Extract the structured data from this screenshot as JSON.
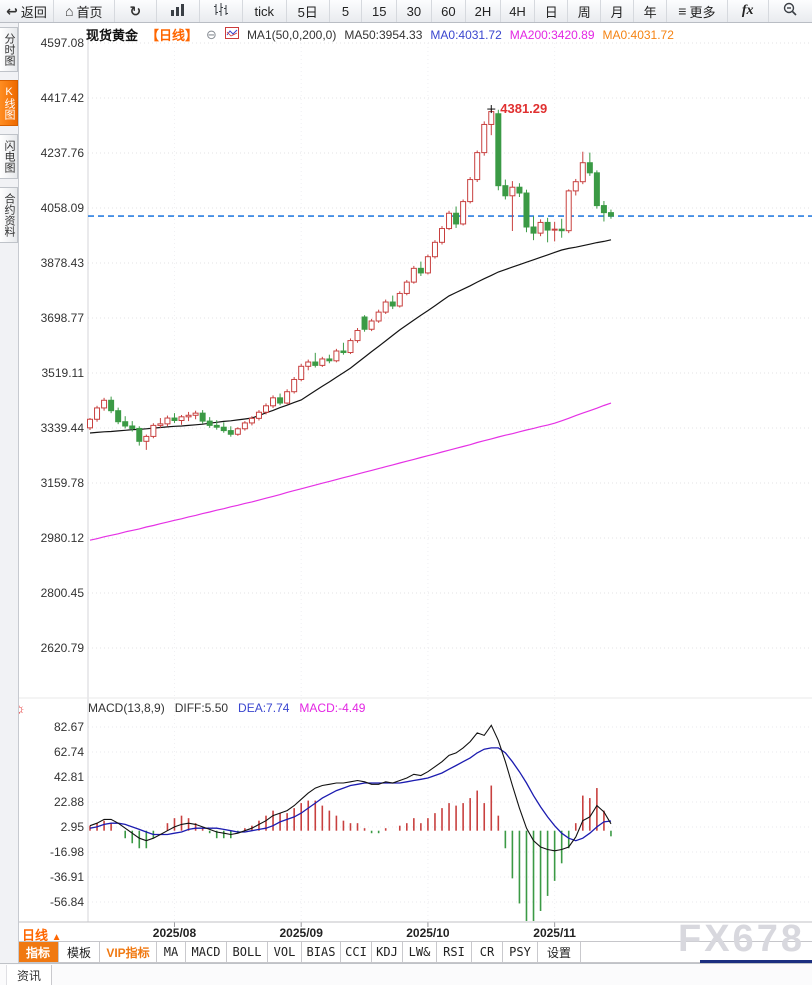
{
  "icons": {
    "back": "↩",
    "home": "⌂",
    "refresh": "↻",
    "hamburger": "≡",
    "collapse": "⊖",
    "indicator_settings": "☼",
    "period_arrow": "▲"
  },
  "toolbar": {
    "back_label": "返回",
    "home_label": "首页",
    "tick_label": "tick",
    "five_day_label": "5日",
    "periods": [
      "5",
      "15",
      "30",
      "60",
      "2H",
      "4H",
      "日",
      "周",
      "月",
      "年"
    ],
    "more_label": "更多",
    "fx_label": "fx"
  },
  "sidebar": {
    "tabs": [
      {
        "label": "分时图",
        "active": false
      },
      {
        "label": "K线图",
        "active": true
      },
      {
        "label": "闪电图",
        "active": false
      },
      {
        "label": "合约资料",
        "active": false
      }
    ]
  },
  "header": {
    "symbol": "现货黄金",
    "period": "【日线】",
    "ma_title": "MA1(50,0,200,0)",
    "ma50": "MA50:3954.33",
    "ma0_blue": "MA0:4031.72",
    "ma200": "MA200:3420.89",
    "ma0_orange": "MA0:4031.72"
  },
  "macd_header": {
    "title": "MACD(13,8,9)",
    "diff": "DIFF:5.50",
    "dea": "DEA:7.74",
    "macd": "MACD:-4.49"
  },
  "bottom": {
    "period_label": "日线",
    "indicator_tabs": [
      {
        "label": "指标"
      },
      {
        "label": "模板"
      },
      {
        "label": "VIP指标"
      },
      {
        "label": "MA"
      },
      {
        "label": "MACD"
      },
      {
        "label": "BOLL"
      },
      {
        "label": "VOL"
      },
      {
        "label": "BIAS"
      },
      {
        "label": "CCI"
      },
      {
        "label": "KDJ"
      },
      {
        "label": "LW&"
      },
      {
        "label": "RSI"
      },
      {
        "label": "CR"
      },
      {
        "label": "PSY"
      },
      {
        "label": "设置"
      }
    ]
  },
  "statusbar": {
    "news_label": "资讯"
  },
  "watermark": "FX678",
  "chart_data": {
    "type": "candlestick",
    "title": "现货黄金 日线",
    "indicator": "MACD(13,8,9)",
    "price_axis_labels": [
      4597.08,
      4417.42,
      4237.76,
      4058.09,
      3878.43,
      3698.77,
      3519.11,
      3339.44,
      3159.78,
      2980.12,
      2800.45,
      2620.79
    ],
    "macd_axis_labels": [
      82.67,
      62.74,
      42.81,
      22.88,
      2.95,
      -16.98,
      -36.91,
      -56.84
    ],
    "x_ticks": [
      {
        "label": "2025/08",
        "index": 12
      },
      {
        "label": "2025/09",
        "index": 30
      },
      {
        "label": "2025/10",
        "index": 48
      },
      {
        "label": "2025/11",
        "index": 66
      }
    ],
    "current_price": 4031.72,
    "peak_annotation": {
      "value": 4381.29,
      "index": 57
    },
    "candles": [
      [
        3340,
        3372,
        3333,
        3368
      ],
      [
        3368,
        3412,
        3360,
        3405
      ],
      [
        3405,
        3438,
        3396,
        3430
      ],
      [
        3430,
        3442,
        3388,
        3396
      ],
      [
        3396,
        3406,
        3352,
        3360
      ],
      [
        3360,
        3378,
        3338,
        3346
      ],
      [
        3346,
        3362,
        3328,
        3338
      ],
      [
        3338,
        3345,
        3282,
        3296
      ],
      [
        3296,
        3318,
        3268,
        3312
      ],
      [
        3312,
        3355,
        3306,
        3348
      ],
      [
        3348,
        3372,
        3340,
        3353
      ],
      [
        3353,
        3380,
        3345,
        3372
      ],
      [
        3372,
        3388,
        3356,
        3364
      ],
      [
        3364,
        3382,
        3350,
        3376
      ],
      [
        3376,
        3392,
        3362,
        3381
      ],
      [
        3381,
        3396,
        3368,
        3388
      ],
      [
        3388,
        3398,
        3354,
        3362
      ],
      [
        3362,
        3375,
        3340,
        3348
      ],
      [
        3348,
        3365,
        3334,
        3342
      ],
      [
        3342,
        3358,
        3324,
        3331
      ],
      [
        3331,
        3345,
        3311,
        3319
      ],
      [
        3319,
        3342,
        3314,
        3337
      ],
      [
        3337,
        3362,
        3331,
        3356
      ],
      [
        3356,
        3378,
        3348,
        3371
      ],
      [
        3371,
        3398,
        3364,
        3391
      ],
      [
        3391,
        3420,
        3384,
        3412
      ],
      [
        3412,
        3446,
        3405,
        3438
      ],
      [
        3438,
        3452,
        3414,
        3421
      ],
      [
        3421,
        3466,
        3417,
        3458
      ],
      [
        3458,
        3506,
        3452,
        3498
      ],
      [
        3498,
        3549,
        3492,
        3541
      ],
      [
        3541,
        3563,
        3528,
        3555
      ],
      [
        3555,
        3585,
        3537,
        3544
      ],
      [
        3544,
        3572,
        3539,
        3565
      ],
      [
        3565,
        3579,
        3551,
        3559
      ],
      [
        3559,
        3598,
        3554,
        3591
      ],
      [
        3591,
        3618,
        3579,
        3586
      ],
      [
        3586,
        3632,
        3581,
        3625
      ],
      [
        3625,
        3666,
        3618,
        3658
      ],
      [
        3702,
        3708,
        3654,
        3662
      ],
      [
        3662,
        3696,
        3656,
        3689
      ],
      [
        3689,
        3726,
        3683,
        3718
      ],
      [
        3718,
        3759,
        3712,
        3751
      ],
      [
        3751,
        3772,
        3728,
        3738
      ],
      [
        3738,
        3786,
        3733,
        3779
      ],
      [
        3779,
        3823,
        3773,
        3816
      ],
      [
        3816,
        3869,
        3811,
        3861
      ],
      [
        3861,
        3883,
        3836,
        3846
      ],
      [
        3846,
        3906,
        3841,
        3899
      ],
      [
        3899,
        3953,
        3893,
        3946
      ],
      [
        3946,
        3999,
        3939,
        3991
      ],
      [
        3991,
        4049,
        3986,
        4041
      ],
      [
        4041,
        4063,
        3993,
        4006
      ],
      [
        4006,
        4086,
        4001,
        4079
      ],
      [
        4079,
        4159,
        4073,
        4151
      ],
      [
        4151,
        4246,
        4143,
        4239
      ],
      [
        4239,
        4341,
        4229,
        4331
      ],
      [
        4331,
        4381.29,
        4296,
        4373
      ],
      [
        4366,
        4379,
        4116,
        4131
      ],
      [
        4131,
        4151,
        4086,
        4098
      ],
      [
        4098,
        4146,
        3983,
        4126
      ],
      [
        4126,
        4139,
        4094,
        4107
      ],
      [
        4107,
        4118,
        3979,
        3996
      ],
      [
        3996,
        4031,
        3953,
        3976
      ],
      [
        3976,
        4021,
        3966,
        4011
      ],
      [
        4011,
        4026,
        3946,
        3986
      ],
      [
        3986,
        4013,
        3949,
        3989
      ],
      [
        3989,
        4023,
        3961,
        3984
      ],
      [
        3984,
        4119,
        3976,
        4114
      ],
      [
        4114,
        4153,
        4099,
        4144
      ],
      [
        4144,
        4242,
        4136,
        4206
      ],
      [
        4206,
        4239,
        4163,
        4173
      ],
      [
        4173,
        4181,
        4056,
        4066
      ],
      [
        4066,
        4081,
        4014,
        4043
      ],
      [
        4043,
        4053,
        4023,
        4031.72
      ]
    ],
    "ma50": [
      3323,
      3325,
      3327,
      3328,
      3330,
      3332,
      3334,
      3335,
      3337,
      3339,
      3341,
      3343,
      3345,
      3346,
      3348,
      3350,
      3352,
      3355,
      3358,
      3361,
      3363,
      3366,
      3369,
      3372,
      3380,
      3389,
      3397,
      3406,
      3414,
      3423,
      3431,
      3446,
      3461,
      3476,
      3490,
      3505,
      3520,
      3535,
      3553,
      3571,
      3589,
      3606,
      3624,
      3642,
      3660,
      3676,
      3692,
      3708,
      3723,
      3739,
      3755,
      3771,
      3782,
      3793,
      3804,
      3816,
      3827,
      3838,
      3849,
      3857,
      3865,
      3873,
      3881,
      3889,
      3897,
      3905,
      3913,
      3921,
      3926,
      3930,
      3935,
      3940,
      3945,
      3949,
      3954.33
    ],
    "ma200": [
      2973,
      2978,
      2984,
      2989,
      2994,
      3000,
      3005,
      3010,
      3016,
      3021,
      3027,
      3032,
      3038,
      3043,
      3049,
      3054,
      3060,
      3065,
      3071,
      3076,
      3082,
      3087,
      3093,
      3098,
      3104,
      3110,
      3116,
      3122,
      3129,
      3135,
      3141,
      3147,
      3153,
      3159,
      3165,
      3171,
      3177,
      3183,
      3189,
      3195,
      3201,
      3207,
      3213,
      3219,
      3225,
      3231,
      3237,
      3243,
      3249,
      3255,
      3261,
      3267,
      3273,
      3279,
      3285,
      3292,
      3298,
      3304,
      3310,
      3316,
      3321,
      3327,
      3333,
      3338,
      3344,
      3349,
      3355,
      3363,
      3371,
      3380,
      3388,
      3396,
      3404,
      3413,
      3420.89
    ],
    "macd": {
      "diff": [
        4,
        6,
        9,
        9,
        6,
        2,
        -2,
        -6,
        -8,
        -6,
        -3,
        0,
        3,
        5,
        6,
        5,
        3,
        1,
        -1,
        -2,
        -3,
        -2,
        0,
        2,
        5,
        8,
        12,
        14,
        16,
        20,
        25,
        30,
        34,
        36,
        37,
        38,
        38,
        39,
        40,
        39,
        37,
        37,
        39,
        38,
        40,
        42,
        45,
        44,
        47,
        51,
        55,
        60,
        62,
        66,
        71,
        78,
        76,
        84,
        72,
        55,
        36,
        18,
        2,
        -8,
        -13,
        -15,
        -16,
        -15,
        -13,
        -5,
        8,
        11,
        20,
        15,
        5.5
      ],
      "dea": [
        2,
        3,
        5,
        6,
        6,
        5,
        3,
        1,
        -1,
        -3,
        -3,
        -3,
        -2,
        -1,
        1,
        2,
        2,
        2,
        2,
        1,
        0,
        -1,
        -1,
        0,
        1,
        2,
        4,
        7,
        9,
        11,
        14,
        18,
        22,
        26,
        29,
        32,
        34,
        36,
        37,
        38,
        38,
        38,
        38,
        38,
        38,
        39,
        40,
        41,
        42,
        44,
        46,
        49,
        52,
        55,
        58,
        62,
        65,
        66,
        66,
        62,
        55,
        47,
        38,
        28,
        19,
        11,
        4,
        -2,
        -6,
        -8,
        -6,
        -2,
        3,
        7,
        7.74
      ]
    },
    "colors": {
      "up": "#c8403f",
      "down": "#3b9a45",
      "ma50": "#141414",
      "ma200": "#e531e5",
      "diff": "#111111",
      "dea": "#1c1cb0",
      "current_line": "#2b7fe0",
      "annotation": "#e03030",
      "grid": "#e3e3e6"
    }
  }
}
